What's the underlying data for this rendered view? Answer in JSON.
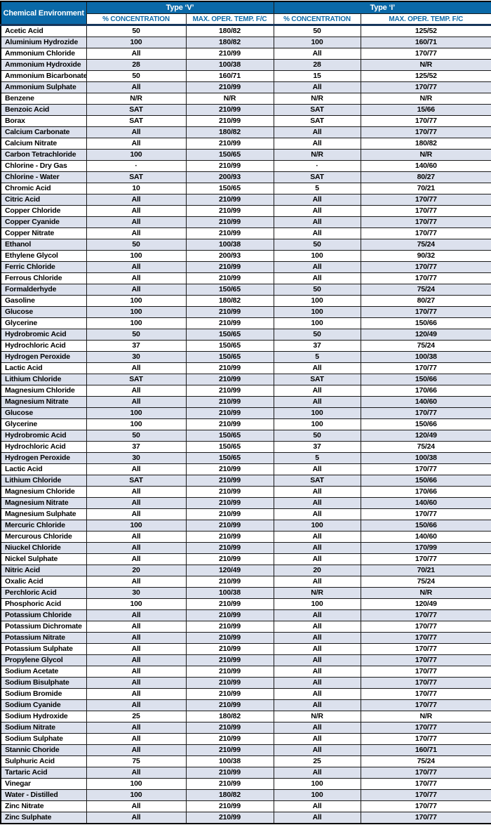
{
  "colors": {
    "header_blue": "#0a69a8",
    "header_text": "#ffffff",
    "subheader_text": "#0a69a8",
    "row_stripe": "#dce1ed",
    "border_dark": "#1a1a1a",
    "navy_rule": "#16355a"
  },
  "table": {
    "header": {
      "chemical_environment": "Chemical Environment",
      "type_v": "Type ‘V’",
      "type_i": "Type ‘I’",
      "concentration": "% CONCENTRATION",
      "max_oper_temp": "MAX. OPER. TEMP. F/C"
    },
    "columns": [
      "chemical",
      "v_concentration",
      "v_max_temp",
      "i_concentration",
      "i_max_temp"
    ],
    "rows": [
      [
        "Acetic Acid",
        "50",
        "180/82",
        "50",
        "125/52"
      ],
      [
        "Aluminium Hydrozide",
        "100",
        "180/82",
        "100",
        "160/71"
      ],
      [
        "Ammonium Chloride",
        "All",
        "210/99",
        "All",
        "170/77"
      ],
      [
        "Ammonium Hydroxide",
        "28",
        "100/38",
        "28",
        "N/R"
      ],
      [
        "Ammonium Bicarbonate",
        "50",
        "160/71",
        "15",
        "125/52"
      ],
      [
        "Ammonium Sulphate",
        "All",
        "210/99",
        "All",
        "170/77"
      ],
      [
        "Benzene",
        "N/R",
        "N/R",
        "N/R",
        "N/R"
      ],
      [
        "Benzoic Acid",
        "SAT",
        "210/99",
        "SAT",
        "15/66"
      ],
      [
        "Borax",
        "SAT",
        "210/99",
        "SAT",
        "170/77"
      ],
      [
        "Calcium Carbonate",
        "All",
        "180/82",
        "All",
        "170/77"
      ],
      [
        "Calcium Nitrate",
        "All",
        "210/99",
        "All",
        "180/82"
      ],
      [
        "Carbon Tetrachloride",
        "100",
        "150/65",
        "N/R",
        "N/R"
      ],
      [
        "Chlorine - Dry Gas",
        "·",
        "210/99",
        "·",
        "140/60"
      ],
      [
        "Chlorine - Water",
        "SAT",
        "200/93",
        "SAT",
        "80/27"
      ],
      [
        "Chromic Acid",
        "10",
        "150/65",
        "5",
        "70/21"
      ],
      [
        "Citric Acid",
        "All",
        "210/99",
        "All",
        "170/77"
      ],
      [
        "Copper Chloride",
        "All",
        "210/99",
        "All",
        "170/77"
      ],
      [
        "Copper Cyanide",
        "All",
        "210/99",
        "All",
        "170/77"
      ],
      [
        "Copper Nitrate",
        "All",
        "210/99",
        "All",
        "170/77"
      ],
      [
        "Ethanol",
        "50",
        "100/38",
        "50",
        "75/24"
      ],
      [
        "Ethylene Glycol",
        "100",
        "200/93",
        "100",
        "90/32"
      ],
      [
        "Ferric Chloride",
        "All",
        "210/99",
        "All",
        "170/77"
      ],
      [
        "Ferrous Chloride",
        "All",
        "210/99",
        "All",
        "170/77"
      ],
      [
        "Formalderhyde",
        "All",
        "150/65",
        "50",
        "75/24"
      ],
      [
        "Gasoline",
        "100",
        "180/82",
        "100",
        "80/27"
      ],
      [
        "Glucose",
        "100",
        "210/99",
        "100",
        "170/77"
      ],
      [
        "Glycerine",
        "100",
        "210/99",
        "100",
        "150/66"
      ],
      [
        "Hydrobromic Acid",
        "50",
        "150/65",
        "50",
        "120/49"
      ],
      [
        "Hydrochloric Acid",
        "37",
        "150/65",
        "37",
        "75/24"
      ],
      [
        "Hydrogen Peroxide",
        "30",
        "150/65",
        "5",
        "100/38"
      ],
      [
        "Lactic Acid",
        "All",
        "210/99",
        "All",
        "170/77"
      ],
      [
        "Lithium Chloride",
        "SAT",
        "210/99",
        "SAT",
        "150/66"
      ],
      [
        "Magnesium Chloride",
        "All",
        "210/99",
        "All",
        "170/66"
      ],
      [
        "Magnesium Nitrate",
        "All",
        "210/99",
        "All",
        "140/60"
      ],
      [
        "Glucose",
        "100",
        "210/99",
        "100",
        "170/77"
      ],
      [
        "Glycerine",
        "100",
        "210/99",
        "100",
        "150/66"
      ],
      [
        "Hydrobromic Acid",
        "50",
        "150/65",
        "50",
        "120/49"
      ],
      [
        "Hydrochloric Acid",
        "37",
        "150/65",
        "37",
        "75/24"
      ],
      [
        "Hydrogen Peroxide",
        "30",
        "150/65",
        "5",
        "100/38"
      ],
      [
        "Lactic Acid",
        "All",
        "210/99",
        "All",
        "170/77"
      ],
      [
        "Lithium Chloride",
        "SAT",
        "210/99",
        "SAT",
        "150/66"
      ],
      [
        "Magnesium Chloride",
        "All",
        "210/99",
        "All",
        "170/66"
      ],
      [
        "Magnesium Nitrate",
        "All",
        "210/99",
        "All",
        "140/60"
      ],
      [
        "Magnesium Sulphate",
        "All",
        "210/99",
        "All",
        "170/77"
      ],
      [
        "Mercuric Chloride",
        "100",
        "210/99",
        "100",
        "150/66"
      ],
      [
        "Mercurous Chloride",
        "All",
        "210/99",
        "All",
        "140/60"
      ],
      [
        "Niuckel Chloride",
        "All",
        "210/99",
        "All",
        "170/99"
      ],
      [
        "Nickel Sulphate",
        "All",
        "210/99",
        "All",
        "170/77"
      ],
      [
        "Nitric Acid",
        "20",
        "120/49",
        "20",
        "70/21"
      ],
      [
        "Oxalic Acid",
        "All",
        "210/99",
        "All",
        "75/24"
      ],
      [
        "Perchloric Acid",
        "30",
        "100/38",
        "N/R",
        "N/R"
      ],
      [
        "Phosphoric Acid",
        "100",
        "210/99",
        "100",
        "120/49"
      ],
      [
        "Potassium Chloride",
        "All",
        "210/99",
        "All",
        "170/77"
      ],
      [
        "Potassium Dichromate",
        "All",
        "210/99",
        "All",
        "170/77"
      ],
      [
        "Potassium Nitrate",
        "All",
        "210/99",
        "All",
        "170/77"
      ],
      [
        "Potassium Sulphate",
        "All",
        "210/99",
        "All",
        "170/77"
      ],
      [
        "Propylene Glycol",
        "All",
        "210/99",
        "All",
        "170/77"
      ],
      [
        "Sodium Acetate",
        "All",
        "210/99",
        "All",
        "170/77"
      ],
      [
        "Sodium Bisulphate",
        "All",
        "210/99",
        "All",
        "170/77"
      ],
      [
        "Sodium Bromide",
        "All",
        "210/99",
        "All",
        "170/77"
      ],
      [
        "Sodium Cyanide",
        "All",
        "210/99",
        "All",
        "170/77"
      ],
      [
        "Sodium Hydroxide",
        "25",
        "180/82",
        "N/R",
        "N/R"
      ],
      [
        "Sodium Nitrate",
        "All",
        "210/99",
        "All",
        "170/77"
      ],
      [
        "Sodium Sulphate",
        "All",
        "210/99",
        "All",
        "170/77"
      ],
      [
        "Stannic Choride",
        "All",
        "210/99",
        "All",
        "160/71"
      ],
      [
        "Sulphuric Acid",
        "75",
        "100/38",
        "25",
        "75/24"
      ],
      [
        "Tartaric Acid",
        "All",
        "210/99",
        "All",
        "170/77"
      ],
      [
        "Vinegar",
        "100",
        "210/99",
        "100",
        "170/77"
      ],
      [
        "Water - Distilled",
        "100",
        "180/82",
        "100",
        "170/77"
      ],
      [
        "Zinc Nitrate",
        "All",
        "210/99",
        "All",
        "170/77"
      ],
      [
        "Zinc Sulphate",
        "All",
        "210/99",
        "All",
        "170/77"
      ]
    ]
  }
}
